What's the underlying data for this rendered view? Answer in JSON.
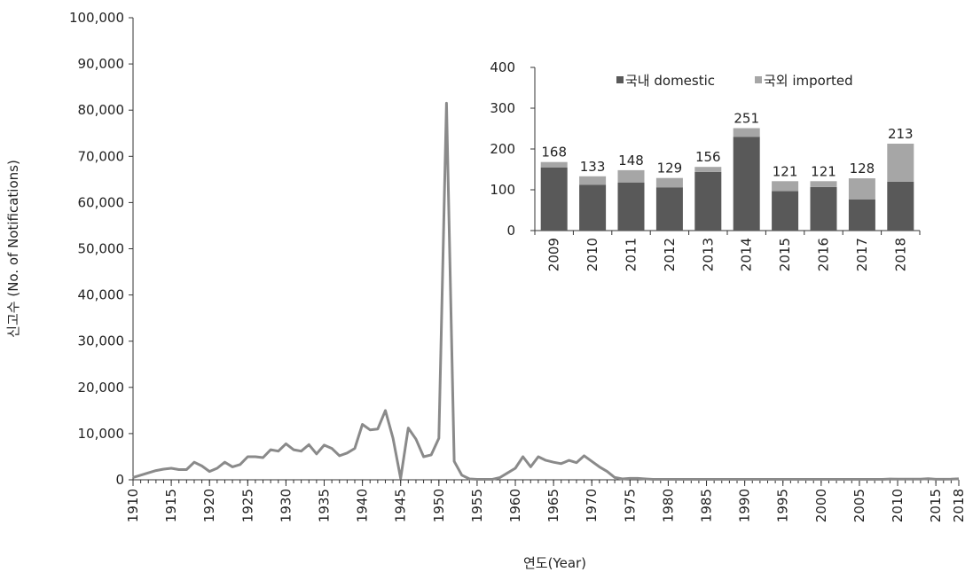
{
  "chart_data": [
    {
      "type": "line",
      "xlabel": "연도(Year)",
      "ylabel": "신고수 (No. of Notifications)",
      "ylim": [
        0,
        100000
      ],
      "xlim": [
        1910,
        2018
      ],
      "y_ticks": [
        "0",
        "10,000",
        "20,000",
        "30,000",
        "40,000",
        "50,000",
        "60,000",
        "70,000",
        "80,000",
        "90,000",
        "100,000"
      ],
      "x_ticks": [
        "1910",
        "1915",
        "1920",
        "1925",
        "1930",
        "1935",
        "1940",
        "1945",
        "1950",
        "1955",
        "1960",
        "1965",
        "1970",
        "1975",
        "1980",
        "1985",
        "1990",
        "1995",
        "2000",
        "2005",
        "2010",
        "2015",
        "2018"
      ],
      "color": "#8a8a8a",
      "x": [
        1910,
        1911,
        1912,
        1913,
        1914,
        1915,
        1916,
        1917,
        1918,
        1919,
        1920,
        1921,
        1922,
        1923,
        1924,
        1925,
        1926,
        1927,
        1928,
        1929,
        1930,
        1931,
        1932,
        1933,
        1934,
        1935,
        1936,
        1937,
        1938,
        1939,
        1940,
        1941,
        1942,
        1943,
        1944,
        1945,
        1946,
        1947,
        1948,
        1949,
        1950,
        1951,
        1952,
        1953,
        1954,
        1955,
        1956,
        1957,
        1958,
        1959,
        1960,
        1961,
        1962,
        1963,
        1964,
        1965,
        1966,
        1967,
        1968,
        1969,
        1970,
        1971,
        1972,
        1973,
        1974,
        1975,
        1976,
        1977,
        1978,
        1979,
        1980,
        1981,
        1982,
        1983,
        1984,
        1985,
        1986,
        1987,
        1988,
        1989,
        1990,
        1991,
        1992,
        1993,
        1994,
        1995,
        1996,
        1997,
        1998,
        1999,
        2000,
        2001,
        2002,
        2003,
        2004,
        2005,
        2006,
        2007,
        2008,
        2009,
        2010,
        2011,
        2012,
        2013,
        2014,
        2015,
        2016,
        2017,
        2018
      ],
      "y": [
        500,
        1000,
        1500,
        2000,
        2300,
        2500,
        2200,
        2200,
        3800,
        3000,
        1800,
        2500,
        3800,
        2800,
        3300,
        5000,
        5000,
        4800,
        6500,
        6200,
        7800,
        6500,
        6200,
        7600,
        5600,
        7500,
        6800,
        5200,
        5800,
        6800,
        12000,
        10800,
        11000,
        15000,
        9000,
        300,
        11200,
        8800,
        5000,
        5400,
        9000,
        81500,
        4000,
        1000,
        200,
        100,
        100,
        100,
        500,
        1500,
        2500,
        5000,
        2800,
        5000,
        4200,
        3800,
        3500,
        4200,
        3700,
        5200,
        4000,
        2800,
        1800,
        500,
        200,
        300,
        300,
        200,
        100,
        100,
        100,
        100,
        100,
        100,
        100,
        100,
        100,
        100,
        100,
        100,
        100,
        100,
        100,
        100,
        100,
        100,
        100,
        100,
        100,
        100,
        100,
        100,
        100,
        100,
        100,
        100,
        100,
        100,
        100,
        168,
        133,
        148,
        129,
        156,
        251,
        121,
        121,
        128,
        213
      ]
    },
    {
      "type": "bar",
      "stacked": true,
      "categories": [
        "2009",
        "2010",
        "2011",
        "2012",
        "2013",
        "2014",
        "2015",
        "2016",
        "2017",
        "2018"
      ],
      "series": [
        {
          "name": "국내 domestic",
          "color": "#595959",
          "values": [
            155,
            112,
            118,
            106,
            144,
            230,
            97,
            107,
            76,
            120
          ]
        },
        {
          "name": "국외 imported",
          "color": "#a6a6a6",
          "values": [
            13,
            21,
            30,
            23,
            12,
            21,
            24,
            14,
            52,
            93
          ]
        }
      ],
      "totals": [
        168,
        133,
        148,
        129,
        156,
        251,
        121,
        121,
        128,
        213
      ],
      "ylim": [
        0,
        400
      ],
      "y_ticks": [
        "0",
        "100",
        "200",
        "300",
        "400"
      ],
      "legend": "top"
    }
  ]
}
